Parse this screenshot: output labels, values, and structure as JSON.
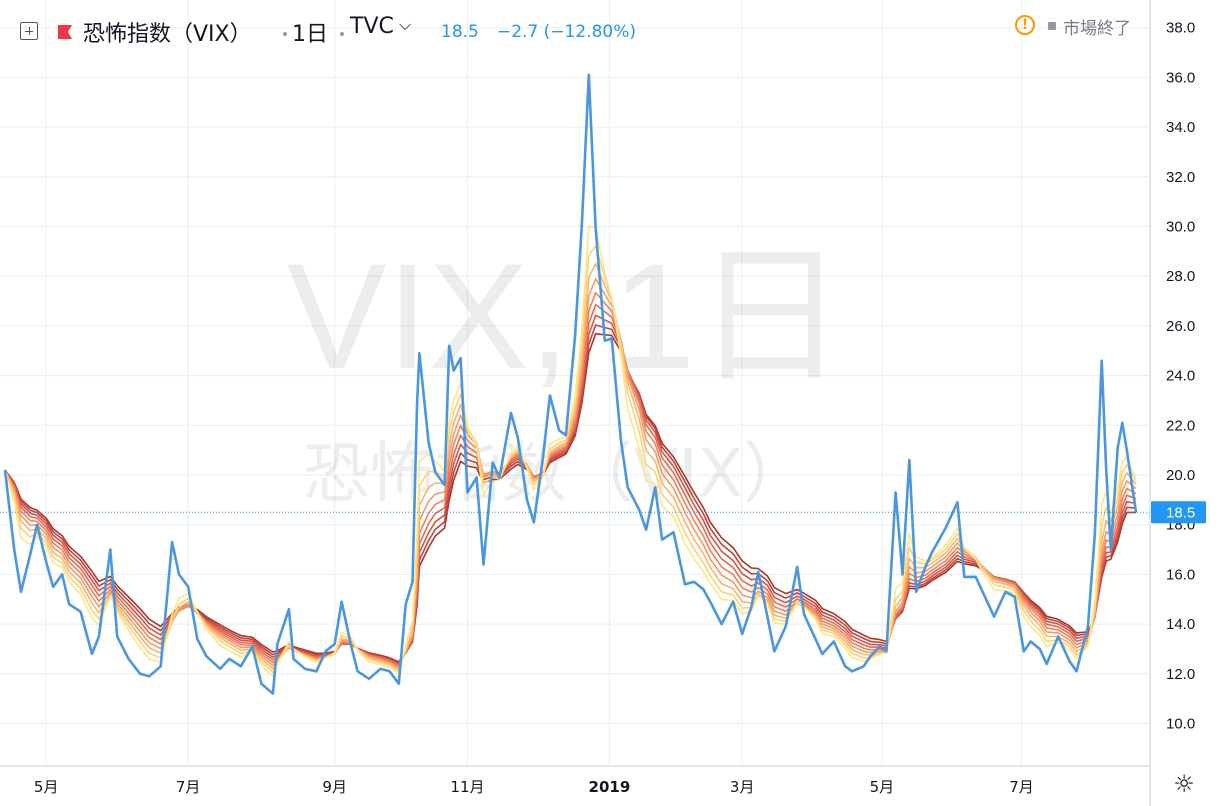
{
  "header": {
    "symbol_name": "恐怖指数（VIX）",
    "interval": "1日",
    "exchange": "TVC",
    "last_price": "18.5",
    "change": "−2.7 (−12.80%)",
    "market_status": "市場終了",
    "warning_icon": "exclamation-circle-icon",
    "add_icon": "plus-square-icon",
    "flag_icon": "flag-icon",
    "flag_color": "#f23645"
  },
  "watermark": {
    "line1": "VIX, 1日",
    "line2": "恐怖指数（VIX）"
  },
  "price_label": "18.5",
  "settings_icon": "gear-icon",
  "colors": {
    "price_line": "#4a97e0",
    "last_price_line": "#2196f3",
    "ribbon": [
      "#fde68a",
      "#fbd27a",
      "#f8b56e",
      "#f49a64",
      "#ee825c",
      "#e46a52",
      "#d55545",
      "#c2443a",
      "#a8362f"
    ],
    "grid": "#e9eef5"
  },
  "chart_data": {
    "type": "line",
    "title": "恐怖指数（VIX）",
    "xlabel": "",
    "ylabel": "",
    "ylim": [
      8.5,
      39
    ],
    "y_ticks": [
      "10.0",
      "12.0",
      "14.0",
      "16.0",
      "18.0",
      "20.0",
      "22.0",
      "24.0",
      "26.0",
      "28.0",
      "30.0",
      "32.0",
      "34.0",
      "36.0",
      "38.0"
    ],
    "x_tick_labels": [
      {
        "label": "5月",
        "date": "2018-05-01"
      },
      {
        "label": "7月",
        "date": "2018-07-02"
      },
      {
        "label": "9月",
        "date": "2018-09-04"
      },
      {
        "label": "11月",
        "date": "2018-11-01"
      },
      {
        "label": "2019",
        "date": "2019-01-02"
      },
      {
        "label": "3月",
        "date": "2019-03-01"
      },
      {
        "label": "5月",
        "date": "2019-05-01"
      },
      {
        "label": "7月",
        "date": "2019-07-01"
      }
    ],
    "x_range": [
      "2018-04-13",
      "2019-08-20"
    ],
    "grid": true,
    "series": [
      {
        "name": "VIX",
        "points": [
          [
            "2018-04-13",
            20.2
          ],
          [
            "2018-04-17",
            17.0
          ],
          [
            "2018-04-20",
            15.3
          ],
          [
            "2018-04-24",
            16.8
          ],
          [
            "2018-04-27",
            18.0
          ],
          [
            "2018-05-01",
            16.5
          ],
          [
            "2018-05-04",
            15.5
          ],
          [
            "2018-05-08",
            16.0
          ],
          [
            "2018-05-11",
            14.8
          ],
          [
            "2018-05-16",
            14.5
          ],
          [
            "2018-05-21",
            12.8
          ],
          [
            "2018-05-24",
            13.5
          ],
          [
            "2018-05-29",
            17.0
          ],
          [
            "2018-06-01",
            13.5
          ],
          [
            "2018-06-06",
            12.6
          ],
          [
            "2018-06-11",
            12.0
          ],
          [
            "2018-06-15",
            11.9
          ],
          [
            "2018-06-20",
            12.3
          ],
          [
            "2018-06-25",
            17.3
          ],
          [
            "2018-06-28",
            16.0
          ],
          [
            "2018-07-02",
            15.5
          ],
          [
            "2018-07-06",
            13.4
          ],
          [
            "2018-07-10",
            12.7
          ],
          [
            "2018-07-16",
            12.2
          ],
          [
            "2018-07-20",
            12.6
          ],
          [
            "2018-07-25",
            12.3
          ],
          [
            "2018-07-30",
            13.1
          ],
          [
            "2018-08-03",
            11.6
          ],
          [
            "2018-08-08",
            11.2
          ],
          [
            "2018-08-10",
            13.2
          ],
          [
            "2018-08-15",
            14.6
          ],
          [
            "2018-08-17",
            12.6
          ],
          [
            "2018-08-22",
            12.2
          ],
          [
            "2018-08-27",
            12.1
          ],
          [
            "2018-08-31",
            12.9
          ],
          [
            "2018-09-04",
            13.2
          ],
          [
            "2018-09-07",
            14.9
          ],
          [
            "2018-09-11",
            13.2
          ],
          [
            "2018-09-14",
            12.1
          ],
          [
            "2018-09-19",
            11.8
          ],
          [
            "2018-09-24",
            12.2
          ],
          [
            "2018-09-28",
            12.1
          ],
          [
            "2018-10-02",
            11.6
          ],
          [
            "2018-10-05",
            14.8
          ],
          [
            "2018-10-08",
            15.7
          ],
          [
            "2018-10-10",
            22.9
          ],
          [
            "2018-10-11",
            24.9
          ],
          [
            "2018-10-15",
            21.3
          ],
          [
            "2018-10-18",
            20.1
          ],
          [
            "2018-10-22",
            19.6
          ],
          [
            "2018-10-24",
            25.2
          ],
          [
            "2018-10-26",
            24.2
          ],
          [
            "2018-10-29",
            24.7
          ],
          [
            "2018-11-01",
            19.3
          ],
          [
            "2018-11-05",
            19.9
          ],
          [
            "2018-11-08",
            16.4
          ],
          [
            "2018-11-12",
            20.5
          ],
          [
            "2018-11-15",
            19.9
          ],
          [
            "2018-11-20",
            22.5
          ],
          [
            "2018-11-23",
            21.5
          ],
          [
            "2018-11-27",
            19.0
          ],
          [
            "2018-11-30",
            18.1
          ],
          [
            "2018-12-04",
            20.7
          ],
          [
            "2018-12-07",
            23.2
          ],
          [
            "2018-12-11",
            21.8
          ],
          [
            "2018-12-14",
            21.6
          ],
          [
            "2018-12-18",
            25.6
          ],
          [
            "2018-12-21",
            30.1
          ],
          [
            "2018-12-24",
            36.1
          ],
          [
            "2018-12-27",
            29.9
          ],
          [
            "2018-12-31",
            25.4
          ],
          [
            "2019-01-03",
            25.5
          ],
          [
            "2019-01-07",
            21.4
          ],
          [
            "2019-01-10",
            19.5
          ],
          [
            "2019-01-15",
            18.6
          ],
          [
            "2019-01-18",
            17.8
          ],
          [
            "2019-01-22",
            19.5
          ],
          [
            "2019-01-25",
            17.4
          ],
          [
            "2019-01-30",
            17.7
          ],
          [
            "2019-02-04",
            15.6
          ],
          [
            "2019-02-08",
            15.7
          ],
          [
            "2019-02-12",
            15.4
          ],
          [
            "2019-02-15",
            14.9
          ],
          [
            "2019-02-20",
            14.0
          ],
          [
            "2019-02-25",
            14.9
          ],
          [
            "2019-03-01",
            13.6
          ],
          [
            "2019-03-05",
            14.7
          ],
          [
            "2019-03-08",
            16.1
          ],
          [
            "2019-03-12",
            14.3
          ],
          [
            "2019-03-15",
            12.9
          ],
          [
            "2019-03-20",
            13.9
          ],
          [
            "2019-03-25",
            16.3
          ],
          [
            "2019-03-28",
            14.4
          ],
          [
            "2019-04-02",
            13.4
          ],
          [
            "2019-04-05",
            12.8
          ],
          [
            "2019-04-10",
            13.3
          ],
          [
            "2019-04-15",
            12.3
          ],
          [
            "2019-04-18",
            12.1
          ],
          [
            "2019-04-23",
            12.3
          ],
          [
            "2019-04-26",
            12.7
          ],
          [
            "2019-04-30",
            13.1
          ],
          [
            "2019-05-03",
            12.9
          ],
          [
            "2019-05-07",
            19.3
          ],
          [
            "2019-05-10",
            16.0
          ],
          [
            "2019-05-13",
            20.6
          ],
          [
            "2019-05-16",
            15.3
          ],
          [
            "2019-05-20",
            16.3
          ],
          [
            "2019-05-23",
            16.9
          ],
          [
            "2019-05-29",
            17.9
          ],
          [
            "2019-06-03",
            18.9
          ],
          [
            "2019-06-06",
            15.9
          ],
          [
            "2019-06-11",
            15.9
          ],
          [
            "2019-06-14",
            15.3
          ],
          [
            "2019-06-19",
            14.3
          ],
          [
            "2019-06-24",
            15.3
          ],
          [
            "2019-06-28",
            15.1
          ],
          [
            "2019-07-02",
            12.9
          ],
          [
            "2019-07-05",
            13.3
          ],
          [
            "2019-07-09",
            13.0
          ],
          [
            "2019-07-12",
            12.4
          ],
          [
            "2019-07-17",
            13.5
          ],
          [
            "2019-07-22",
            12.5
          ],
          [
            "2019-07-25",
            12.1
          ],
          [
            "2019-07-30",
            13.9
          ],
          [
            "2019-08-02",
            17.6
          ],
          [
            "2019-08-05",
            24.6
          ],
          [
            "2019-08-07",
            20.2
          ],
          [
            "2019-08-09",
            17.0
          ],
          [
            "2019-08-12",
            21.1
          ],
          [
            "2019-08-14",
            22.1
          ],
          [
            "2019-08-16",
            21.0
          ],
          [
            "2019-08-20",
            18.5
          ]
        ]
      }
    ]
  }
}
